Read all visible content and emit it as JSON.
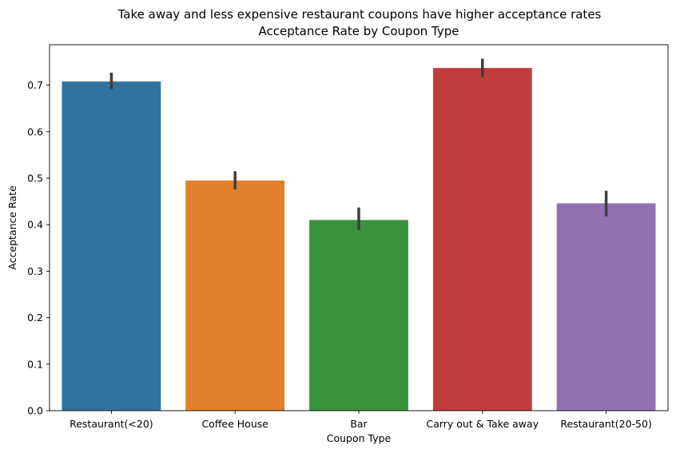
{
  "chart_data": {
    "type": "bar",
    "suptitle": "Take away and less expensive restaurant coupons have higher acceptance rates",
    "title": "Acceptance Rate by Coupon Type",
    "xlabel": "Coupon Type",
    "ylabel": "Acceptance Rate",
    "ylim": [
      0,
      0.787
    ],
    "yticks": [
      "0.0",
      "0.1",
      "0.2",
      "0.3",
      "0.4",
      "0.5",
      "0.6",
      "0.7"
    ],
    "grid": false,
    "categories": [
      "Restaurant(<20)",
      "Coffee House",
      "Bar",
      "Carry out & Take away",
      "Restaurant(20-50)"
    ],
    "values": [
      0.708,
      0.495,
      0.41,
      0.737,
      0.446
    ],
    "error_low": [
      0.691,
      0.476,
      0.388,
      0.717,
      0.418
    ],
    "error_high": [
      0.727,
      0.515,
      0.437,
      0.757,
      0.473
    ],
    "colors": [
      "#3274a1",
      "#e1812c",
      "#3a923a",
      "#c03d3e",
      "#9372b2"
    ],
    "error_color": "#3f3f3f"
  }
}
